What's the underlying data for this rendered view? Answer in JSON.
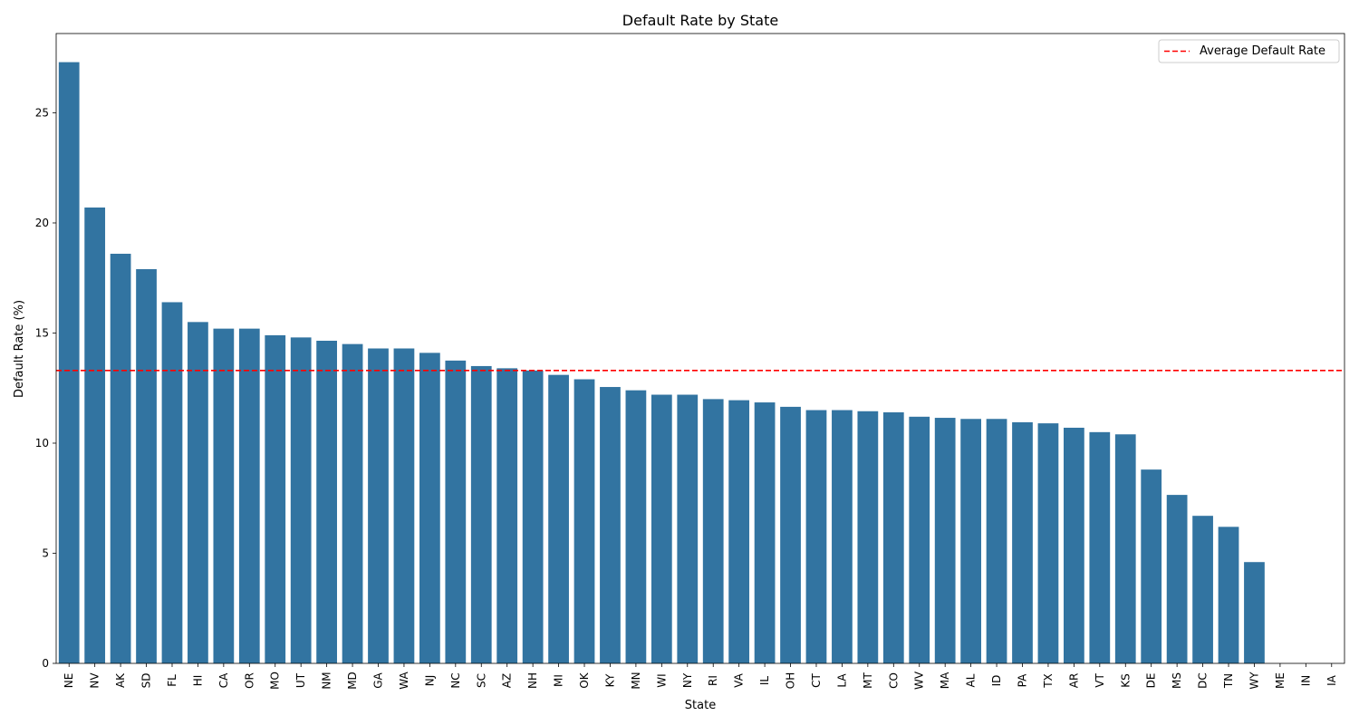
{
  "chart_data": {
    "type": "bar",
    "title": "Default Rate by State",
    "xlabel": "State",
    "ylabel": "Default Rate (%)",
    "ylim": [
      0,
      28.6
    ],
    "yticks": [
      0,
      5,
      10,
      15,
      20,
      25
    ],
    "grid": false,
    "legend_position": "top-right",
    "bar_color": "#3274a1",
    "average_line": {
      "label": "Average Default Rate",
      "value": 13.3,
      "color": "#ff0000",
      "style": "dashed"
    },
    "categories": [
      "NE",
      "NV",
      "AK",
      "SD",
      "FL",
      "HI",
      "CA",
      "OR",
      "MO",
      "UT",
      "NM",
      "MD",
      "GA",
      "WA",
      "NJ",
      "NC",
      "SC",
      "AZ",
      "NH",
      "MI",
      "OK",
      "KY",
      "MN",
      "WI",
      "NY",
      "RI",
      "VA",
      "IL",
      "OH",
      "CT",
      "LA",
      "MT",
      "CO",
      "WV",
      "MA",
      "AL",
      "ID",
      "PA",
      "TX",
      "AR",
      "VT",
      "KS",
      "DE",
      "MS",
      "DC",
      "TN",
      "WY",
      "ME",
      "IN",
      "IA"
    ],
    "values": [
      27.3,
      20.7,
      18.6,
      17.9,
      16.4,
      15.5,
      15.2,
      15.2,
      14.9,
      14.8,
      14.65,
      14.5,
      14.3,
      14.3,
      14.1,
      13.75,
      13.5,
      13.4,
      13.3,
      13.1,
      12.9,
      12.55,
      12.4,
      12.2,
      12.2,
      12.0,
      11.95,
      11.85,
      11.65,
      11.5,
      11.5,
      11.45,
      11.4,
      11.2,
      11.15,
      11.1,
      11.1,
      10.95,
      10.9,
      10.7,
      10.5,
      10.4,
      8.8,
      7.65,
      6.7,
      6.2,
      4.6,
      0,
      0,
      0
    ]
  }
}
